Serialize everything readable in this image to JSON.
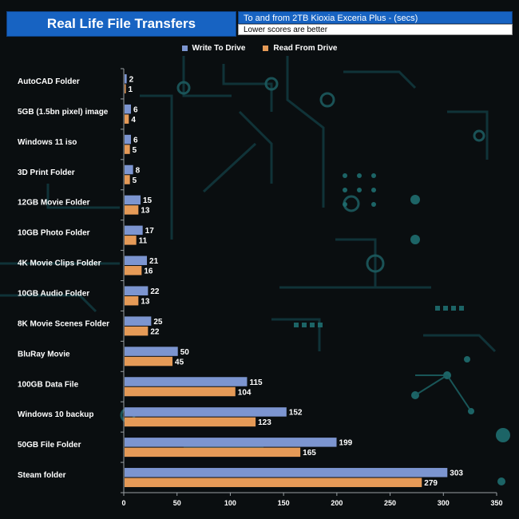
{
  "chart_data": {
    "type": "bar",
    "orientation": "horizontal",
    "title": "Real Life File Transfers",
    "subtitle": "To and from 2TB Kioxia Exceria Plus - (secs)",
    "note": "Lower scores are better",
    "categories": [
      "AutoCAD Folder",
      "5GB (1.5bn pixel) image",
      "Windows 11 iso",
      "3D Print Folder",
      "12GB Movie Folder",
      "10GB Photo Folder",
      "4K Movie Clips Folder",
      "10GB Audio Folder",
      "8K Movie Scenes Folder",
      "BluRay Movie",
      "100GB Data File",
      "Windows 10 backup",
      "50GB File Folder",
      "Steam folder"
    ],
    "series": [
      {
        "name": "Write To  Drive",
        "color": "#7c95d0",
        "values": [
          2,
          6,
          6,
          8,
          15,
          17,
          21,
          22,
          25,
          50,
          115,
          152,
          199,
          303
        ]
      },
      {
        "name": "Read From  Drive",
        "color": "#e59a57",
        "values": [
          1,
          4,
          5,
          5,
          13,
          11,
          16,
          13,
          22,
          45,
          104,
          123,
          165,
          279
        ]
      }
    ],
    "xlim": [
      0,
      350
    ],
    "xticks": [
      0,
      50,
      100,
      150,
      200,
      250,
      300,
      350
    ],
    "legend_position": "top-center",
    "grid": false
  }
}
